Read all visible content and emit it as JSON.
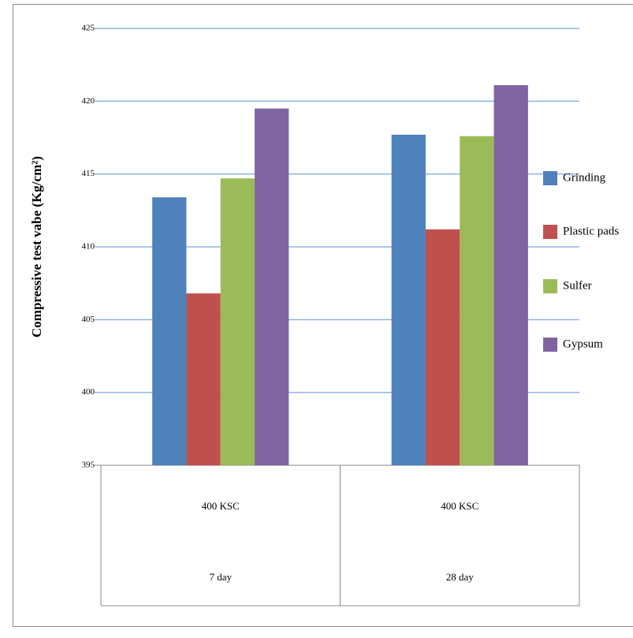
{
  "chart_data": {
    "type": "bar",
    "y_axis_label": "Compressive test vabe (Kg/cm²)",
    "categories": [
      "400 KSC",
      "400 KSC"
    ],
    "category_periods": [
      "7 day",
      "28 day"
    ],
    "series": [
      {
        "name": "Grinding",
        "color": "#4f81bd",
        "values": [
          413.4,
          417.7
        ]
      },
      {
        "name": "Plastic pads",
        "color": "#c0504d",
        "values": [
          406.8,
          411.2
        ]
      },
      {
        "name": "Sulfer",
        "color": "#9bbb59",
        "values": [
          414.7,
          417.6
        ]
      },
      {
        "name": "Gypsum",
        "color": "#8064a2",
        "values": [
          419.5,
          421.1
        ]
      }
    ],
    "ylim": [
      395,
      425
    ],
    "yticks": [
      395,
      400,
      405,
      410,
      415,
      420,
      425
    ],
    "grid": true,
    "legend": "right"
  }
}
